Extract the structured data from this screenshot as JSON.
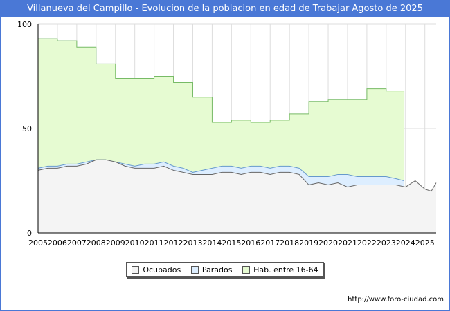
{
  "title": "Villanueva del Campillo - Evolucion de la poblacion en edad de Trabajar Agosto de 2025",
  "source_url": "http://www.foro-ciudad.com",
  "colors": {
    "title_bg": "#4a78d6",
    "ocupados_fill": "#f4f4f4",
    "ocupados_line": "#666666",
    "parados_fill": "#ddeeff",
    "parados_line": "#6699cc",
    "hab_fill": "#e6fbd2",
    "hab_line": "#77bb66",
    "grid": "#dddddd"
  },
  "chart_data": {
    "type": "area",
    "title": "Villanueva del Campillo - Evolucion de la poblacion en edad de Trabajar Agosto de 2025",
    "xlabel": "",
    "ylabel": "",
    "xlim": [
      2005,
      2025.583
    ],
    "ylim": [
      0,
      100
    ],
    "yticks": [
      0,
      50,
      100
    ],
    "xticks": [
      "2005",
      "2006",
      "2007",
      "2008",
      "2009",
      "2010",
      "2011",
      "2012",
      "2013",
      "2014",
      "2015",
      "2016",
      "2017",
      "2018",
      "2019",
      "2020",
      "2021",
      "2022",
      "2023",
      "2024",
      "2025"
    ],
    "legend": [
      "Ocupados",
      "Parados",
      "Hab. entre 16-64"
    ],
    "legend_position": "bottom-center",
    "series": [
      {
        "name": "Hab. entre 16-64",
        "x": [
          2005,
          2006,
          2007,
          2008,
          2009,
          2010,
          2011,
          2012,
          2013,
          2014,
          2015,
          2016,
          2017,
          2018,
          2019,
          2020,
          2021,
          2022,
          2023,
          2023.92
        ],
        "values": [
          93,
          92,
          89,
          81,
          74,
          74,
          75,
          72,
          65,
          53,
          54,
          53,
          54,
          57,
          63,
          64,
          64,
          69,
          68,
          68
        ]
      },
      {
        "name": "Parados",
        "x": [
          2005,
          2005.5,
          2006,
          2006.5,
          2007,
          2007.5,
          2008,
          2008.5,
          2009,
          2009.5,
          2010,
          2010.5,
          2011,
          2011.5,
          2012,
          2012.5,
          2013,
          2013.5,
          2014,
          2014.5,
          2015,
          2015.5,
          2016,
          2016.5,
          2017,
          2017.5,
          2018,
          2018.5,
          2019,
          2019.5,
          2020,
          2020.5,
          2021,
          2021.5,
          2022,
          2022.5,
          2023,
          2023.5,
          2023.92
        ],
        "values": [
          31,
          32,
          32,
          33,
          33,
          34,
          35,
          35,
          34,
          33,
          32,
          33,
          33,
          34,
          32,
          31,
          29,
          30,
          31,
          32,
          32,
          31,
          32,
          32,
          31,
          32,
          32,
          31,
          27,
          27,
          27,
          28,
          28,
          27,
          27,
          27,
          27,
          26,
          25
        ]
      },
      {
        "name": "Ocupados",
        "x": [
          2005,
          2005.5,
          2006,
          2006.5,
          2007,
          2007.5,
          2008,
          2008.5,
          2009,
          2009.5,
          2010,
          2010.5,
          2011,
          2011.5,
          2012,
          2012.5,
          2013,
          2013.5,
          2014,
          2014.5,
          2015,
          2015.5,
          2016,
          2016.5,
          2017,
          2017.5,
          2018,
          2018.5,
          2019,
          2019.5,
          2020,
          2020.5,
          2021,
          2021.5,
          2022,
          2022.5,
          2023,
          2023.5,
          2024,
          2024.5,
          2025,
          2025.33,
          2025.583
        ],
        "values": [
          30,
          31,
          31,
          32,
          32,
          33,
          35,
          35,
          34,
          32,
          31,
          31,
          31,
          32,
          30,
          29,
          28,
          28,
          28,
          29,
          29,
          28,
          29,
          29,
          28,
          29,
          29,
          28,
          23,
          24,
          23,
          24,
          22,
          23,
          23,
          23,
          23,
          23,
          22,
          25,
          21,
          20,
          24
        ]
      }
    ]
  }
}
